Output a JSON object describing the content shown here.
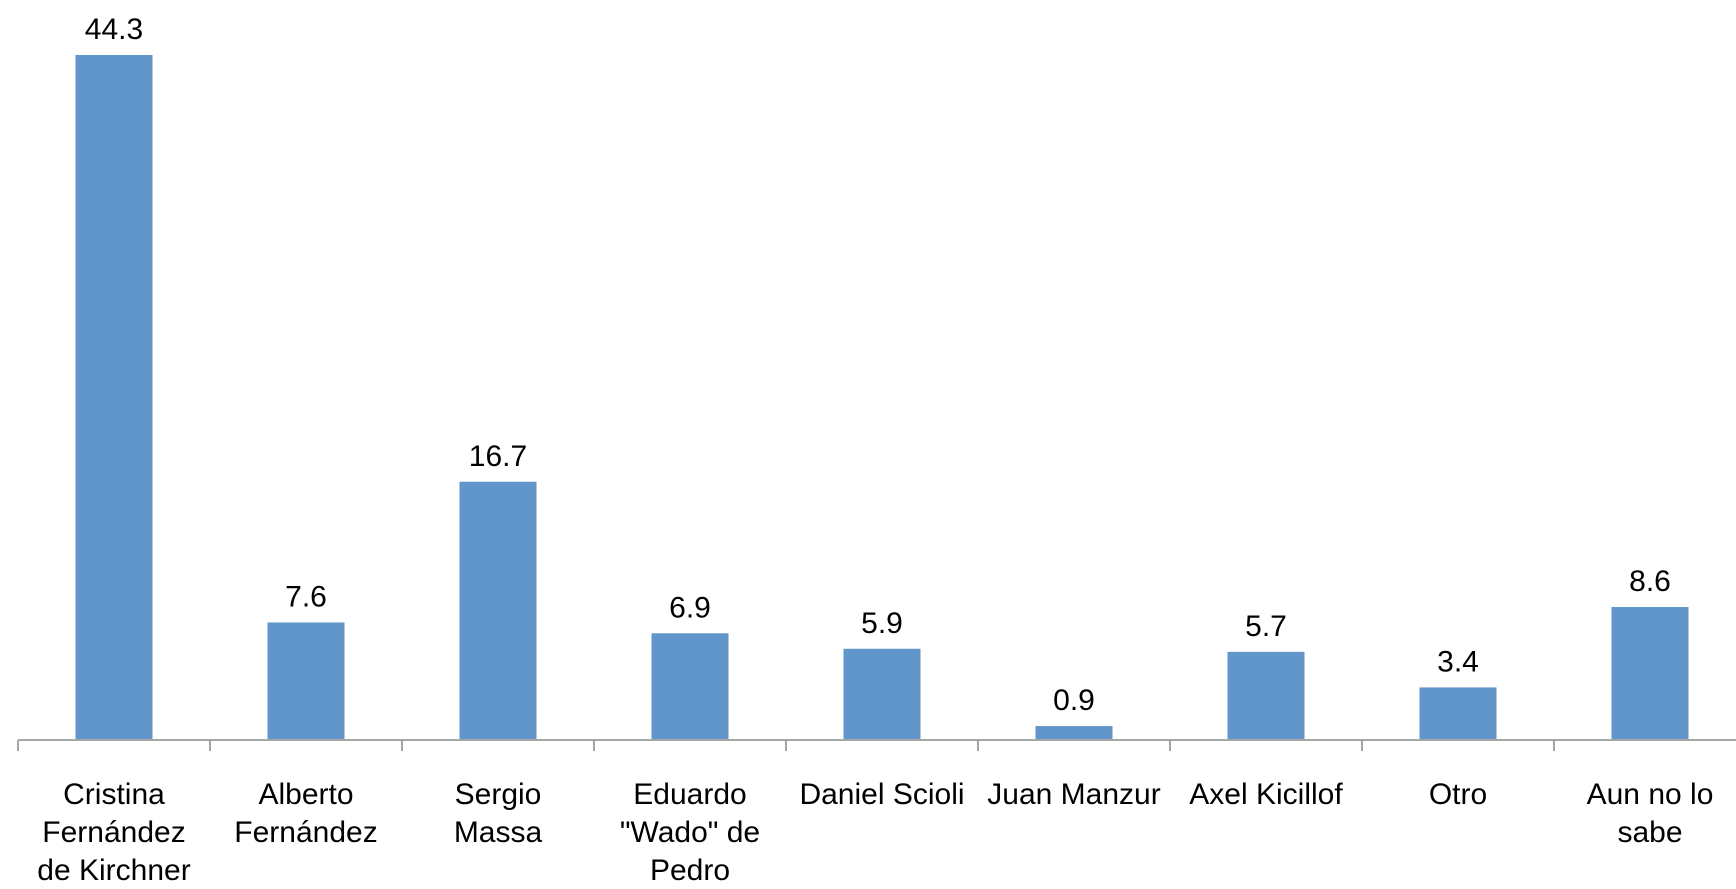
{
  "chart_data": {
    "type": "bar",
    "title": "",
    "xlabel": "",
    "ylabel": "",
    "ylim": [
      0,
      44.3
    ],
    "grid": false,
    "legend": "none",
    "bar_color": "#6096C9",
    "axis_color": "#A6A6A6",
    "categories": [
      [
        "Cristina",
        "Fernández",
        "de Kirchner"
      ],
      [
        "Alberto",
        "Fernández"
      ],
      [
        "Sergio",
        "Massa"
      ],
      [
        "Eduardo",
        "\"Wado\" de",
        "Pedro"
      ],
      [
        "Daniel Scioli"
      ],
      [
        "Juan Manzur"
      ],
      [
        "Axel Kicillof"
      ],
      [
        "Otro"
      ],
      [
        "Aun no lo",
        "sabe"
      ]
    ],
    "values": [
      44.3,
      7.6,
      16.7,
      6.9,
      5.9,
      0.9,
      5.7,
      3.4,
      8.6
    ],
    "value_labels": [
      "44.3",
      "7.6",
      "16.7",
      "6.9",
      "5.9",
      "0.9",
      "5.7",
      "3.4",
      "8.6"
    ]
  }
}
